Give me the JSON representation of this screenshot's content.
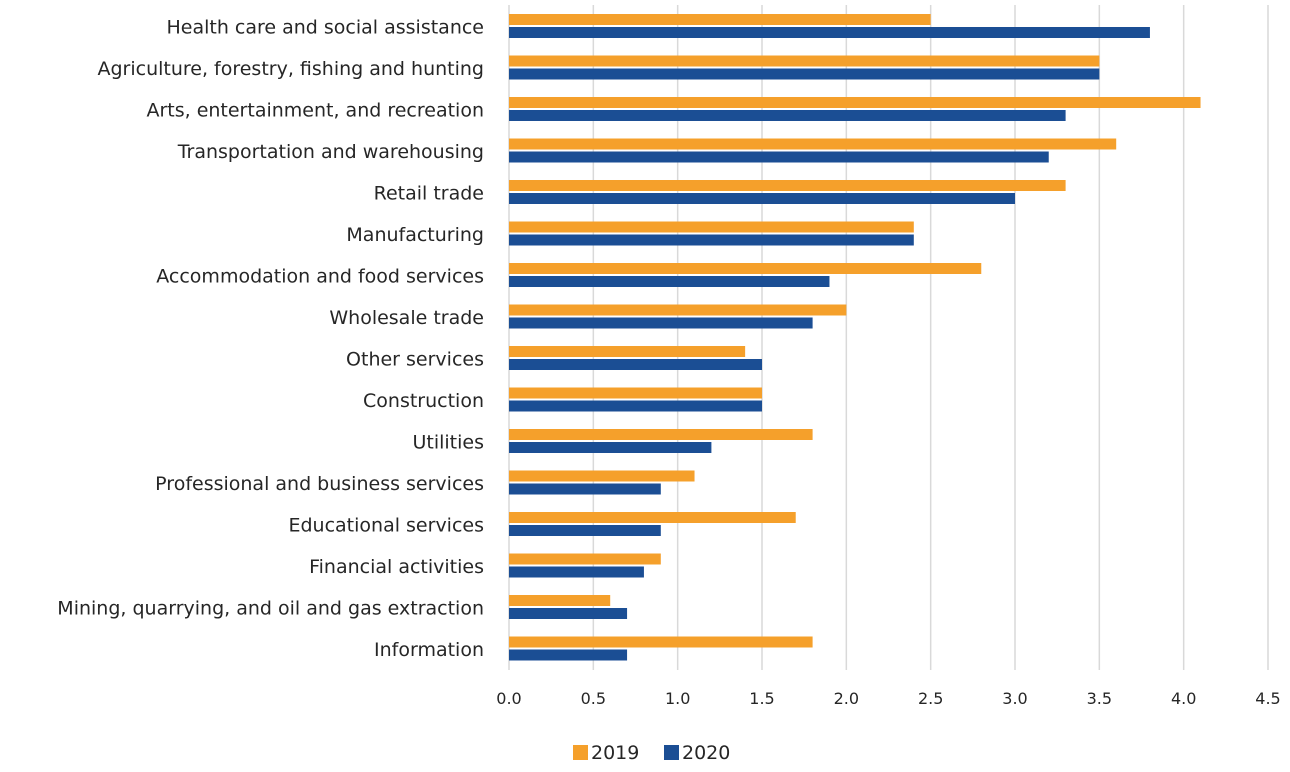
{
  "chart_data": {
    "type": "bar",
    "orientation": "horizontal",
    "categories": [
      "Health care and social assistance",
      "Agriculture, forestry, fishing and hunting",
      "Arts, entertainment, and recreation",
      "Transportation and warehousing",
      "Retail trade",
      "Manufacturing",
      "Accommodation and food services",
      "Wholesale trade",
      "Other services",
      "Construction",
      "Utilities",
      "Professional and business services",
      "Educational services",
      "Financial activities",
      "Mining, quarrying, and oil and gas extraction",
      "Information"
    ],
    "series": [
      {
        "name": "2019",
        "color": "#F5A02B",
        "values": [
          2.5,
          3.5,
          4.1,
          3.6,
          3.3,
          2.4,
          2.8,
          2.0,
          1.4,
          1.5,
          1.8,
          1.1,
          1.7,
          0.9,
          0.6,
          1.8
        ]
      },
      {
        "name": "2020",
        "color": "#1B4E94",
        "values": [
          3.8,
          3.5,
          3.3,
          3.2,
          3.0,
          2.4,
          1.9,
          1.8,
          1.5,
          1.5,
          1.2,
          0.9,
          0.9,
          0.8,
          0.7,
          0.7
        ]
      }
    ],
    "xlim": [
      0,
      4.5
    ],
    "xticks": [
      "0.0",
      "0.5",
      "1.0",
      "1.5",
      "2.0",
      "2.5",
      "3.0",
      "3.5",
      "4.0",
      "4.5"
    ],
    "grid": true,
    "legend_position": "bottom",
    "title": "",
    "xlabel": "",
    "ylabel": ""
  }
}
